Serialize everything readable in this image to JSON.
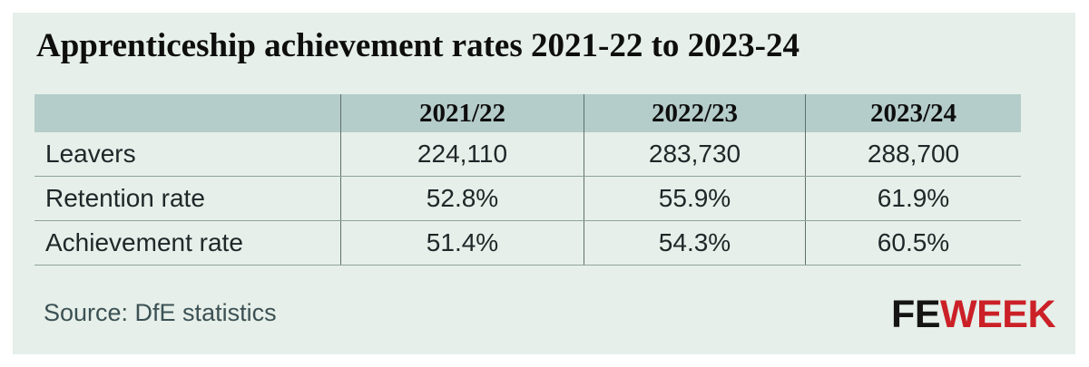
{
  "title": "Apprenticeship achievement rates 2021-22 to 2023-24",
  "table": {
    "column_headers": [
      "2021/22",
      "2022/23",
      "2023/24"
    ],
    "rows": [
      {
        "label": "Leavers",
        "values": [
          "224,110",
          "283,730",
          "288,700"
        ]
      },
      {
        "label": "Retention rate",
        "values": [
          "52.8%",
          "55.9%",
          "61.9%"
        ]
      },
      {
        "label": "Achievement rate",
        "values": [
          "51.4%",
          "54.3%",
          "60.5%"
        ]
      }
    ]
  },
  "source": "Source: DfE statistics",
  "logo": {
    "fe": "FE",
    "week": "WEEK"
  },
  "colors": {
    "card_background": "#e6efe9",
    "header_row_background": "#b5cdca",
    "vertical_line": "#5e706e",
    "horizontal_line": "#90a19e",
    "body_text": "#212629",
    "heading_text": "#0e0e0e",
    "source_text": "#3c5154",
    "logo_black": "#151515",
    "logo_red": "#cb2027"
  },
  "chart_data": {
    "type": "table",
    "title": "Apprenticeship achievement rates 2021-22 to 2023-24",
    "categories": [
      "2021/22",
      "2022/23",
      "2023/24"
    ],
    "series": [
      {
        "name": "Leavers",
        "values": [
          224110,
          283730,
          288700
        ]
      },
      {
        "name": "Retention rate",
        "values": [
          52.8,
          55.9,
          61.9
        ],
        "unit": "%"
      },
      {
        "name": "Achievement rate",
        "values": [
          51.4,
          54.3,
          60.5
        ],
        "unit": "%"
      }
    ],
    "source": "Source: DfE statistics",
    "layout_hints": {
      "header_row_shaded": true,
      "internal_vertical_dividers": true,
      "horizontal_row_separators": true,
      "outer_border": false
    }
  }
}
